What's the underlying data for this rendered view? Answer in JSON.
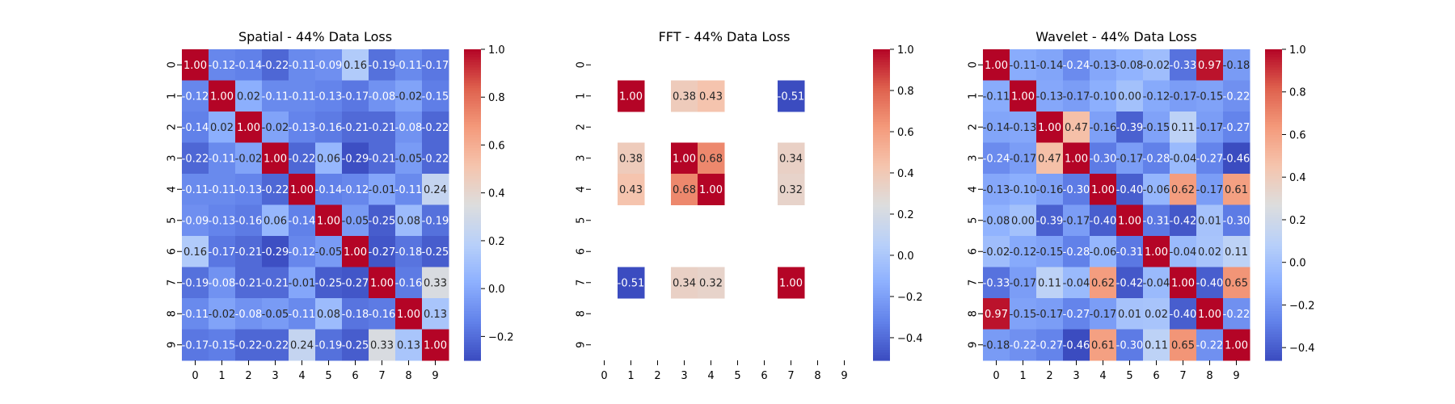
{
  "chart_data": [
    {
      "type": "heatmap",
      "title": "Spatial - 44% Data Loss",
      "rows": [
        "0",
        "1",
        "2",
        "3",
        "4",
        "5",
        "6",
        "7",
        "8",
        "9"
      ],
      "cols": [
        "0",
        "1",
        "2",
        "3",
        "4",
        "5",
        "6",
        "7",
        "8",
        "9"
      ],
      "vmin": -0.3,
      "vmax": 1.0,
      "colorbar_ticks": [
        1.0,
        0.8,
        0.6,
        0.4,
        0.2,
        0.0,
        -0.2
      ],
      "colorbar_tick_labels": [
        "1.0",
        "0.8",
        "0.6",
        "0.4",
        "0.2",
        "0.0",
        "−0.2"
      ],
      "values": [
        [
          1.0,
          -0.12,
          -0.14,
          -0.22,
          -0.11,
          -0.09,
          0.16,
          -0.19,
          -0.11,
          -0.17
        ],
        [
          -0.12,
          1.0,
          0.02,
          -0.11,
          -0.11,
          -0.13,
          -0.17,
          -0.08,
          -0.02,
          -0.15
        ],
        [
          -0.14,
          0.02,
          1.0,
          -0.02,
          -0.13,
          -0.16,
          -0.21,
          -0.21,
          -0.08,
          -0.22
        ],
        [
          -0.22,
          -0.11,
          -0.02,
          1.0,
          -0.22,
          0.06,
          -0.29,
          -0.21,
          -0.05,
          -0.22
        ],
        [
          -0.11,
          -0.11,
          -0.13,
          -0.22,
          1.0,
          -0.14,
          -0.12,
          -0.01,
          -0.11,
          0.24
        ],
        [
          -0.09,
          -0.13,
          -0.16,
          0.06,
          -0.14,
          1.0,
          -0.05,
          -0.25,
          0.08,
          -0.19
        ],
        [
          0.16,
          -0.17,
          -0.21,
          -0.29,
          -0.12,
          -0.05,
          1.0,
          -0.27,
          -0.18,
          -0.25
        ],
        [
          -0.19,
          -0.08,
          -0.21,
          -0.21,
          -0.01,
          -0.25,
          -0.27,
          1.0,
          -0.16,
          0.33
        ],
        [
          -0.11,
          -0.02,
          -0.08,
          -0.05,
          -0.11,
          0.08,
          -0.18,
          -0.16,
          1.0,
          0.13
        ],
        [
          -0.17,
          -0.15,
          -0.22,
          -0.22,
          0.24,
          -0.19,
          -0.25,
          0.33,
          0.13,
          1.0
        ]
      ]
    },
    {
      "type": "heatmap",
      "title": "FFT - 44% Data Loss",
      "rows": [
        "0",
        "1",
        "2",
        "3",
        "4",
        "5",
        "6",
        "7",
        "8",
        "9"
      ],
      "cols": [
        "0",
        "1",
        "2",
        "3",
        "4",
        "5",
        "6",
        "7",
        "8",
        "9"
      ],
      "vmin": -0.51,
      "vmax": 1.0,
      "colorbar_ticks": [
        1.0,
        0.8,
        0.6,
        0.4,
        0.2,
        0.0,
        -0.2,
        -0.4
      ],
      "colorbar_tick_labels": [
        "1.0",
        "0.8",
        "0.6",
        "0.4",
        "0.2",
        "0.0",
        "−0.2",
        "−0.4"
      ],
      "values": [
        [
          null,
          null,
          null,
          null,
          null,
          null,
          null,
          null,
          null,
          null
        ],
        [
          null,
          1.0,
          null,
          0.38,
          0.43,
          null,
          null,
          -0.51,
          null,
          null
        ],
        [
          null,
          null,
          null,
          null,
          null,
          null,
          null,
          null,
          null,
          null
        ],
        [
          null,
          0.38,
          null,
          1.0,
          0.68,
          null,
          null,
          0.34,
          null,
          null
        ],
        [
          null,
          0.43,
          null,
          0.68,
          1.0,
          null,
          null,
          0.32,
          null,
          null
        ],
        [
          null,
          null,
          null,
          null,
          null,
          null,
          null,
          null,
          null,
          null
        ],
        [
          null,
          null,
          null,
          null,
          null,
          null,
          null,
          null,
          null,
          null
        ],
        [
          null,
          -0.51,
          null,
          0.34,
          0.32,
          null,
          null,
          1.0,
          null,
          null
        ],
        [
          null,
          null,
          null,
          null,
          null,
          null,
          null,
          null,
          null,
          null
        ],
        [
          null,
          null,
          null,
          null,
          null,
          null,
          null,
          null,
          null,
          null
        ]
      ]
    },
    {
      "type": "heatmap",
      "title": "Wavelet - 44% Data Loss",
      "rows": [
        "0",
        "1",
        "2",
        "3",
        "4",
        "5",
        "6",
        "7",
        "8",
        "9"
      ],
      "cols": [
        "0",
        "1",
        "2",
        "3",
        "4",
        "5",
        "6",
        "7",
        "8",
        "9"
      ],
      "vmin": -0.46,
      "vmax": 1.0,
      "colorbar_ticks": [
        1.0,
        0.8,
        0.6,
        0.4,
        0.2,
        0.0,
        -0.2,
        -0.4
      ],
      "colorbar_tick_labels": [
        "1.0",
        "0.8",
        "0.6",
        "0.4",
        "0.2",
        "0.0",
        "−0.2",
        "−0.4"
      ],
      "values": [
        [
          1.0,
          -0.11,
          -0.14,
          -0.24,
          -0.13,
          -0.08,
          -0.02,
          -0.33,
          0.97,
          -0.18
        ],
        [
          -0.11,
          1.0,
          -0.13,
          -0.17,
          -0.1,
          0.0,
          -0.12,
          -0.17,
          -0.15,
          -0.22
        ],
        [
          -0.14,
          -0.13,
          1.0,
          0.47,
          -0.16,
          -0.39,
          -0.15,
          0.11,
          -0.17,
          -0.27
        ],
        [
          -0.24,
          -0.17,
          0.47,
          1.0,
          -0.3,
          -0.17,
          -0.28,
          -0.04,
          -0.27,
          -0.46
        ],
        [
          -0.13,
          -0.1,
          -0.16,
          -0.3,
          1.0,
          -0.4,
          -0.06,
          0.62,
          -0.17,
          0.61
        ],
        [
          -0.08,
          0.0,
          -0.39,
          -0.17,
          -0.4,
          1.0,
          -0.31,
          -0.42,
          0.01,
          -0.3
        ],
        [
          -0.02,
          -0.12,
          -0.15,
          -0.28,
          -0.06,
          -0.31,
          1.0,
          -0.04,
          0.02,
          0.11
        ],
        [
          -0.33,
          -0.17,
          0.11,
          -0.04,
          0.62,
          -0.42,
          -0.04,
          1.0,
          -0.4,
          0.65
        ],
        [
          0.97,
          -0.15,
          -0.17,
          -0.27,
          -0.17,
          0.01,
          0.02,
          -0.4,
          1.0,
          -0.22
        ],
        [
          -0.18,
          -0.22,
          -0.27,
          -0.46,
          0.61,
          -0.3,
          0.11,
          0.65,
          -0.22,
          1.0
        ]
      ]
    }
  ]
}
